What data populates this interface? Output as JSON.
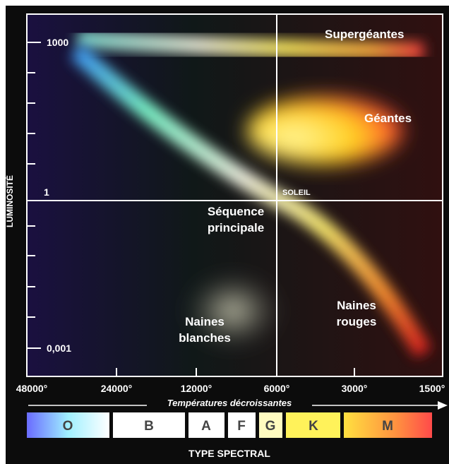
{
  "axes": {
    "y_label": "LUMINOSITÉ",
    "y_ticks": [
      "1000",
      "1",
      "0,001"
    ],
    "x_label": "Températures décroissantes",
    "x_ticks": [
      "48000°",
      "24000°",
      "12000°",
      "6000°",
      "3000°",
      "1500°"
    ]
  },
  "regions": {
    "supergiants": [
      "Supergéantes"
    ],
    "giants": [
      "Géantes"
    ],
    "main_sequence": [
      "Séquence",
      "principale"
    ],
    "white_dwarfs": [
      "Naines",
      "blanches"
    ],
    "red_dwarfs": [
      "Naines",
      "rouges"
    ]
  },
  "sun": "SOLEIL",
  "spectral": {
    "title": "TYPE SPECTRAL",
    "classes": [
      "O",
      "B",
      "A",
      "F",
      "G",
      "K",
      "M"
    ]
  }
}
